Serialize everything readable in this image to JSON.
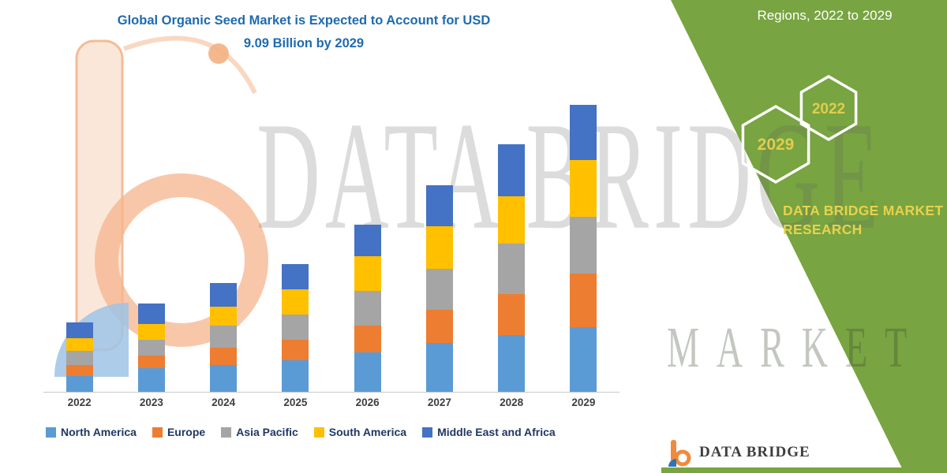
{
  "title": {
    "line1": "Global Organic Seed Market is Expected to Account for USD",
    "line2": "9.09 Billion by 2029",
    "color": "#1E6BB0"
  },
  "watermark": {
    "main": "DATA BRIDGE",
    "secondary": "MARKET RESEARCH"
  },
  "side_panel": {
    "heading": "Regions, 2022 to 2029",
    "hexagons": [
      {
        "label": "2029"
      },
      {
        "label": "2022"
      }
    ],
    "brand_line1": "DATA BRIDGE MARKET",
    "brand_line2": "RESEARCH",
    "color": "#78A441",
    "accent_text_color": "#E8D24C"
  },
  "footer_logo": {
    "text": "DATA BRIDGE"
  },
  "chart_data": {
    "type": "bar",
    "stacked": true,
    "title": "Global Organic Seed Market is Expected to Account for USD 9.09 Billion by 2029",
    "unit": "USD Billion",
    "xlabel": "",
    "ylabel": "",
    "ylim": [
      0,
      10
    ],
    "grid": false,
    "legend_position": "bottom",
    "categories": [
      "2022",
      "2023",
      "2024",
      "2025",
      "2026",
      "2027",
      "2028",
      "2029"
    ],
    "totals": [
      2.2,
      2.8,
      3.45,
      4.05,
      5.3,
      6.55,
      7.85,
      9.09
    ],
    "series": [
      {
        "name": "North America",
        "color": "#5B9BD5",
        "values": [
          0.5,
          0.75,
          0.85,
          1.0,
          1.25,
          1.55,
          1.8,
          2.05
        ]
      },
      {
        "name": "Europe",
        "color": "#ED7D31",
        "values": [
          0.35,
          0.4,
          0.55,
          0.65,
          0.85,
          1.05,
          1.3,
          1.7
        ]
      },
      {
        "name": "Asia Pacific",
        "color": "#A5A5A5",
        "values": [
          0.45,
          0.5,
          0.7,
          0.8,
          1.1,
          1.3,
          1.6,
          1.8
        ]
      },
      {
        "name": "South America",
        "color": "#FFC000",
        "values": [
          0.4,
          0.5,
          0.6,
          0.8,
          1.1,
          1.35,
          1.5,
          1.8
        ]
      },
      {
        "name": "Middle East and Africa",
        "color": "#4472C4",
        "values": [
          0.5,
          0.65,
          0.75,
          0.8,
          1.0,
          1.3,
          1.65,
          1.74
        ]
      }
    ]
  }
}
